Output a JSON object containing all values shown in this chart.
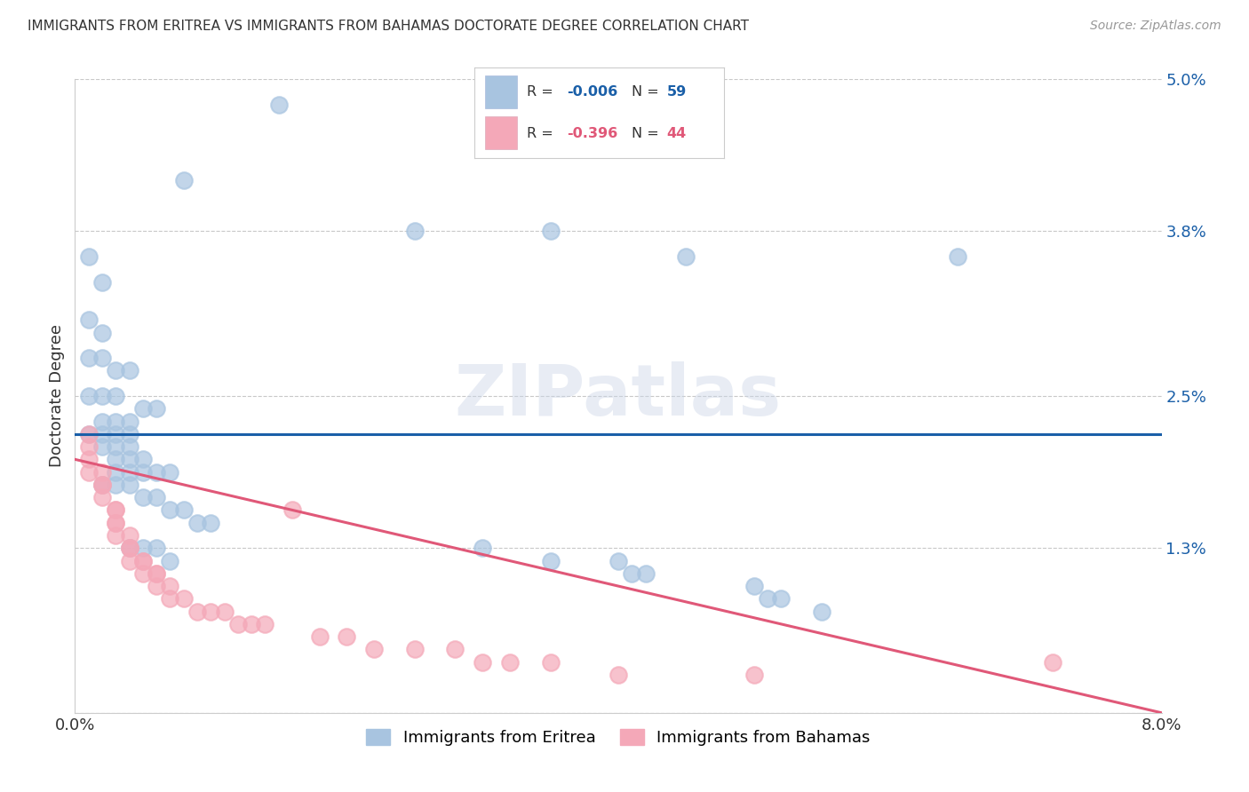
{
  "title": "IMMIGRANTS FROM ERITREA VS IMMIGRANTS FROM BAHAMAS DOCTORATE DEGREE CORRELATION CHART",
  "source": "Source: ZipAtlas.com",
  "ylabel": "Doctorate Degree",
  "xlim": [
    0.0,
    0.08
  ],
  "ylim": [
    0.0,
    0.05
  ],
  "ytick_positions": [
    0.0,
    0.013,
    0.025,
    0.038,
    0.05
  ],
  "ytick_labels": [
    "",
    "1.3%",
    "2.5%",
    "3.8%",
    "5.0%"
  ],
  "grid_color": "#c8c8c8",
  "background_color": "#ffffff",
  "watermark_text": "ZIPatlas",
  "color_eritrea": "#a8c4e0",
  "color_bahamas": "#f4a8b8",
  "line_color_eritrea": "#1a5fa8",
  "line_color_bahamas": "#e05878",
  "blue_line_y0": 0.022,
  "blue_line_y1": 0.022,
  "pink_line_y0": 0.02,
  "pink_line_y1": 0.0,
  "eritrea_x": [
    0.015,
    0.008,
    0.001,
    0.002,
    0.025,
    0.035,
    0.045,
    0.065,
    0.001,
    0.002,
    0.001,
    0.002,
    0.003,
    0.004,
    0.001,
    0.002,
    0.003,
    0.002,
    0.003,
    0.004,
    0.005,
    0.006,
    0.001,
    0.002,
    0.003,
    0.004,
    0.002,
    0.003,
    0.004,
    0.003,
    0.004,
    0.005,
    0.003,
    0.004,
    0.005,
    0.006,
    0.007,
    0.002,
    0.003,
    0.004,
    0.005,
    0.006,
    0.007,
    0.008,
    0.009,
    0.01,
    0.004,
    0.005,
    0.006,
    0.007,
    0.03,
    0.035,
    0.04,
    0.041,
    0.042,
    0.05,
    0.051,
    0.052,
    0.055
  ],
  "eritrea_y": [
    0.048,
    0.042,
    0.036,
    0.034,
    0.038,
    0.038,
    0.036,
    0.036,
    0.031,
    0.03,
    0.028,
    0.028,
    0.027,
    0.027,
    0.025,
    0.025,
    0.025,
    0.023,
    0.023,
    0.023,
    0.024,
    0.024,
    0.022,
    0.022,
    0.022,
    0.022,
    0.021,
    0.021,
    0.021,
    0.02,
    0.02,
    0.02,
    0.019,
    0.019,
    0.019,
    0.019,
    0.019,
    0.018,
    0.018,
    0.018,
    0.017,
    0.017,
    0.016,
    0.016,
    0.015,
    0.015,
    0.013,
    0.013,
    0.013,
    0.012,
    0.013,
    0.012,
    0.012,
    0.011,
    0.011,
    0.01,
    0.009,
    0.009,
    0.008
  ],
  "bahamas_x": [
    0.001,
    0.001,
    0.001,
    0.001,
    0.002,
    0.002,
    0.002,
    0.002,
    0.003,
    0.003,
    0.003,
    0.003,
    0.003,
    0.004,
    0.004,
    0.004,
    0.004,
    0.005,
    0.005,
    0.005,
    0.006,
    0.006,
    0.006,
    0.007,
    0.007,
    0.008,
    0.009,
    0.01,
    0.011,
    0.012,
    0.013,
    0.014,
    0.016,
    0.018,
    0.02,
    0.022,
    0.025,
    0.028,
    0.03,
    0.032,
    0.035,
    0.04,
    0.05,
    0.072
  ],
  "bahamas_y": [
    0.022,
    0.021,
    0.02,
    0.019,
    0.019,
    0.018,
    0.018,
    0.017,
    0.016,
    0.016,
    0.015,
    0.015,
    0.014,
    0.014,
    0.013,
    0.013,
    0.012,
    0.012,
    0.012,
    0.011,
    0.011,
    0.011,
    0.01,
    0.01,
    0.009,
    0.009,
    0.008,
    0.008,
    0.008,
    0.007,
    0.007,
    0.007,
    0.016,
    0.006,
    0.006,
    0.005,
    0.005,
    0.005,
    0.004,
    0.004,
    0.004,
    0.003,
    0.003,
    0.004
  ]
}
